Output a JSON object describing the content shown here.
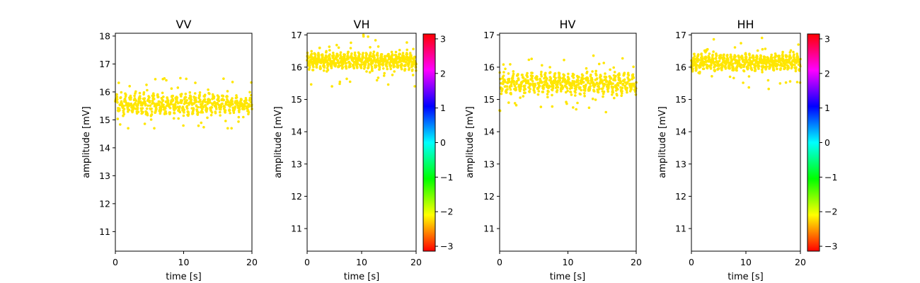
{
  "chart_data": [
    {
      "type": "scatter",
      "title": "VV",
      "xlabel": "time [s]",
      "ylabel": "amplitude [mV]",
      "xlim": [
        0,
        20
      ],
      "ylim": [
        10.3,
        18.1
      ],
      "xticks": [
        0,
        10,
        20
      ],
      "yticks": [
        11,
        12,
        13,
        14,
        15,
        16,
        17,
        18
      ],
      "point_color": "#ffe600",
      "series_summary": {
        "center": 15.55,
        "band": 0.45,
        "outlier_min": 14.7,
        "outlier_max": 16.5
      }
    },
    {
      "type": "scatter",
      "title": "VH",
      "xlabel": "time [s]",
      "ylabel": "amplitude [mV]",
      "xlim": [
        0,
        20
      ],
      "ylim": [
        10.3,
        17.05
      ],
      "xticks": [
        0,
        10,
        20
      ],
      "yticks": [
        11,
        12,
        13,
        14,
        15,
        16,
        17
      ],
      "point_color": "#ffe600",
      "series_summary": {
        "center": 16.2,
        "band": 0.3,
        "outlier_min": 15.05,
        "outlier_max": 17.0
      },
      "colorbar": {
        "min": -3.14159,
        "max": 3.14159,
        "ticks": [
          3,
          2,
          1,
          0,
          -1,
          -2,
          -3
        ],
        "tick_labels": [
          "3",
          "2",
          "1",
          "0",
          "−1",
          "−2",
          "−3"
        ],
        "colormap": "hsv"
      }
    },
    {
      "type": "scatter",
      "title": "HV",
      "xlabel": "time [s]",
      "ylabel": "amplitude [mV]",
      "xlim": [
        0,
        20
      ],
      "ylim": [
        10.3,
        17.05
      ],
      "xticks": [
        0,
        10,
        20
      ],
      "yticks": [
        11,
        12,
        13,
        14,
        15,
        16,
        17
      ],
      "point_color": "#ffe600",
      "series_summary": {
        "center": 15.5,
        "band": 0.4,
        "outlier_min": 14.6,
        "outlier_max": 16.4
      }
    },
    {
      "type": "scatter",
      "title": "HH",
      "xlabel": "time [s]",
      "ylabel": "amplitude [mV]",
      "xlim": [
        0,
        20
      ],
      "ylim": [
        10.3,
        17.05
      ],
      "xticks": [
        0,
        10,
        20
      ],
      "yticks": [
        11,
        12,
        13,
        14,
        15,
        16,
        17
      ],
      "point_color": "#ffe600",
      "series_summary": {
        "center": 16.15,
        "band": 0.3,
        "outlier_min": 15.3,
        "outlier_max": 17.0
      },
      "colorbar": {
        "min": -3.14159,
        "max": 3.14159,
        "ticks": [
          3,
          2,
          1,
          0,
          -1,
          -2,
          -3
        ],
        "tick_labels": [
          "3",
          "2",
          "1",
          "0",
          "−1",
          "−2",
          "−3"
        ],
        "colormap": "hsv"
      }
    }
  ]
}
